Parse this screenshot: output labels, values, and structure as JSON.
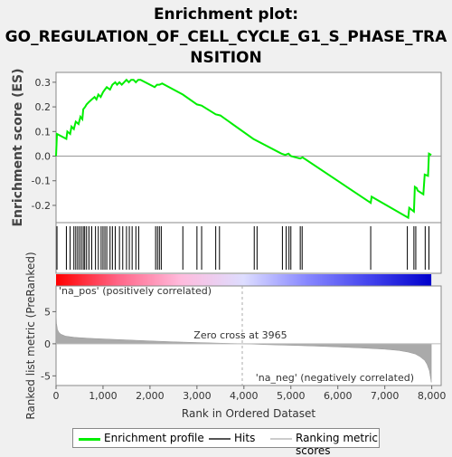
{
  "title_lines": [
    "Enrichment plot:",
    "GO_REGULATION_OF_CELL_CYCLE_G1_S_PHASE_TRA",
    "NSITION"
  ],
  "colors": {
    "es_line": "#00ee00",
    "hits": "#000000",
    "metric_fill": "#aaaaaa",
    "pos_text": "#dd0000",
    "neg_text": "#0000cc",
    "zero_line": "#aaaaaa"
  },
  "chart_data": {
    "type": "line",
    "title": "Enrichment plot: GO_REGULATION_OF_CELL_CYCLE_G1_S_PHASE_TRANSITION",
    "es_panel": {
      "ylabel": "Enrichment score (ES)",
      "ylim": [
        -0.27,
        0.34
      ],
      "yticks": [
        "0.3",
        "0.2",
        "0.1",
        "0.0",
        "-0.1",
        "-0.2"
      ],
      "ytick_values": [
        0.3,
        0.2,
        0.1,
        0.0,
        -0.1,
        -0.2
      ],
      "series": [
        {
          "name": "Enrichment profile",
          "x": [
            0,
            20,
            220,
            240,
            300,
            330,
            380,
            420,
            480,
            520,
            560,
            580,
            620,
            650,
            700,
            760,
            820,
            860,
            900,
            950,
            1000,
            1040,
            1080,
            1150,
            1200,
            1260,
            1300,
            1350,
            1400,
            1450,
            1500,
            1550,
            1600,
            1650,
            1700,
            1750,
            1800,
            2100,
            2150,
            2200,
            2260,
            2700,
            3000,
            3100,
            3400,
            3500,
            4200,
            4800,
            4880,
            4950,
            5000,
            5200,
            5250,
            6700,
            6720,
            7500,
            7520,
            7620,
            7640,
            7680,
            7700,
            7820,
            7850,
            7920,
            7940,
            7990
          ],
          "y": [
            0.0,
            0.09,
            0.07,
            0.1,
            0.09,
            0.12,
            0.11,
            0.14,
            0.13,
            0.16,
            0.15,
            0.19,
            0.2,
            0.21,
            0.22,
            0.23,
            0.24,
            0.23,
            0.25,
            0.24,
            0.26,
            0.27,
            0.28,
            0.27,
            0.29,
            0.3,
            0.29,
            0.3,
            0.29,
            0.3,
            0.31,
            0.3,
            0.31,
            0.31,
            0.3,
            0.31,
            0.31,
            0.28,
            0.29,
            0.29,
            0.295,
            0.25,
            0.21,
            0.205,
            0.17,
            0.165,
            0.07,
            0.01,
            0.005,
            0.01,
            0.0,
            -0.01,
            -0.005,
            -0.19,
            -0.165,
            -0.25,
            -0.21,
            -0.225,
            -0.125,
            -0.13,
            -0.14,
            -0.155,
            -0.075,
            -0.08,
            0.01,
            0.005
          ]
        }
      ]
    },
    "hits": [
      20,
      220,
      300,
      380,
      420,
      460,
      500,
      540,
      580,
      610,
      650,
      700,
      760,
      840,
      900,
      960,
      1000,
      1040,
      1080,
      1150,
      1200,
      1260,
      1350,
      1420,
      1500,
      1560,
      1620,
      1700,
      1760,
      2120,
      2160,
      2200,
      2240,
      2700,
      3000,
      3100,
      3400,
      3480,
      4220,
      4280,
      4820,
      4900,
      4960,
      5000,
      5200,
      5240,
      6700,
      7480,
      7620,
      7660,
      7860,
      7940
    ],
    "metric_panel": {
      "ylabel": "Ranked list metric (PreRanked)",
      "ylim": [
        -6.5,
        9.0
      ],
      "yticks": [
        "5",
        "0",
        "-5"
      ],
      "ytick_values": [
        5,
        0,
        -5
      ],
      "pos_label": "'na_pos' (positively correlated)",
      "neg_label": "'na_neg' (negatively correlated)",
      "zero_cross_text": "Zero cross at 3965",
      "zero_cross": 3965,
      "profile_x": [
        0,
        10,
        30,
        60,
        100,
        200,
        400,
        700,
        1000,
        1500,
        2000,
        2500,
        3000,
        3500,
        3965,
        4500,
        5000,
        5500,
        6000,
        6500,
        7000,
        7300,
        7500,
        7650,
        7750,
        7850,
        7900,
        7950,
        7990
      ],
      "profile_y": [
        5.0,
        3.2,
        2.2,
        1.8,
        1.5,
        1.2,
        1.0,
        0.85,
        0.75,
        0.6,
        0.45,
        0.3,
        0.2,
        0.1,
        0.0,
        -0.15,
        -0.25,
        -0.35,
        -0.5,
        -0.65,
        -0.85,
        -1.05,
        -1.3,
        -1.6,
        -2.0,
        -2.6,
        -3.2,
        -4.2,
        -6.0
      ]
    },
    "xlabel": "Rank in Ordered Dataset",
    "xlim": [
      0,
      8200
    ],
    "xticks": [
      "0",
      "1,000",
      "2,000",
      "3,000",
      "4,000",
      "5,000",
      "6,000",
      "7,000",
      "8,000"
    ],
    "xtick_values": [
      0,
      1000,
      2000,
      3000,
      4000,
      5000,
      6000,
      7000,
      8000
    ],
    "n_genes": 7990,
    "gradient_stops": [
      "#ff0000",
      "#ff6688",
      "#ffbbdd",
      "#ddddff",
      "#8888ff",
      "#4444ee",
      "#0000cc"
    ]
  },
  "legend": {
    "items": [
      "Enrichment profile",
      "Hits",
      "Ranking metric scores"
    ]
  }
}
